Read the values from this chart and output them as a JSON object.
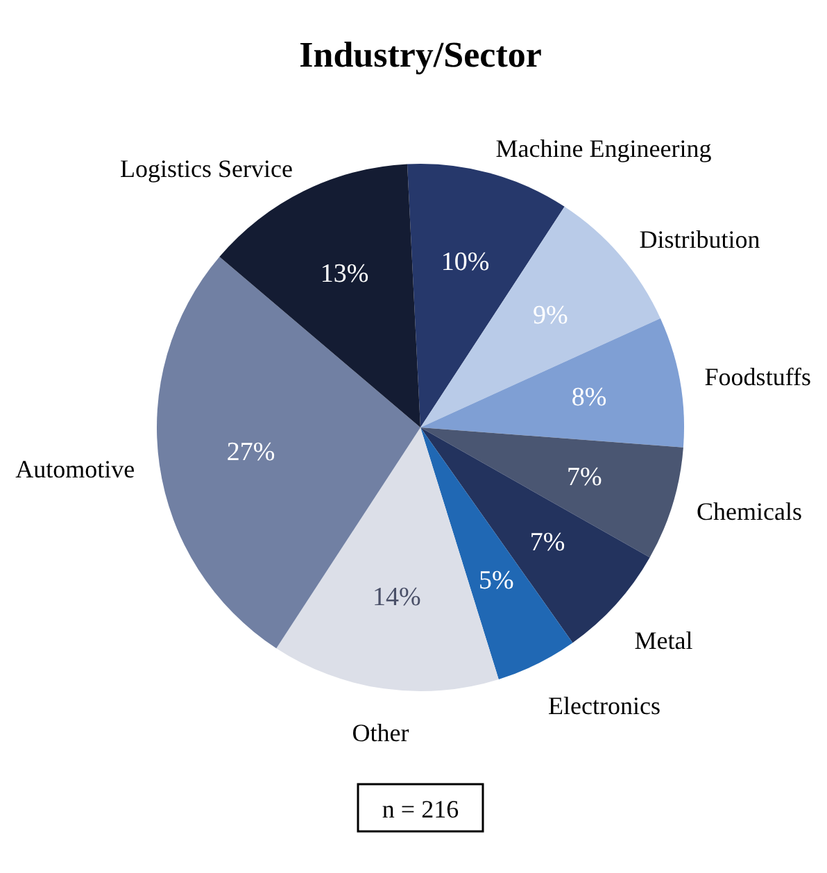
{
  "chart_data": {
    "type": "pie",
    "title": "Industry/Sector",
    "categories": [
      "Machine Engineering",
      "Distribution",
      "Foodstuffs",
      "Chemicals",
      "Metal",
      "Electronics",
      "Other",
      "Automotive",
      "Logistics Service"
    ],
    "values": [
      10,
      9,
      8,
      7,
      7,
      5,
      14,
      27,
      13
    ],
    "value_labels": [
      "10%",
      "9%",
      "8%",
      "7%",
      "7%",
      "5%",
      "14%",
      "27%",
      "13%"
    ],
    "colors": [
      "#26386b",
      "#b9cbe8",
      "#7f9fd4",
      "#4a5672",
      "#23335e",
      "#2068b4",
      "#dcdfe8",
      "#7180a3",
      "#141c33"
    ],
    "annotations": [
      "n = 216"
    ]
  }
}
